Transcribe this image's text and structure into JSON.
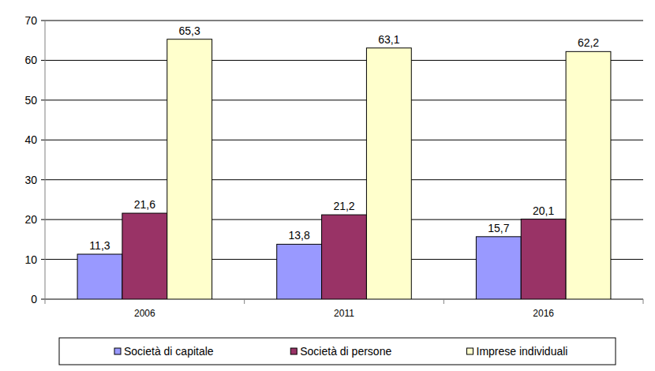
{
  "chart_data": {
    "type": "bar",
    "categories": [
      "2006",
      "2011",
      "2016"
    ],
    "series": [
      {
        "name": "Società di capitale",
        "color": "#9999ff",
        "values": [
          11.3,
          13.8,
          15.7
        ],
        "value_labels": [
          "11,3",
          "13,8",
          "15,7"
        ]
      },
      {
        "name": "Società di persone",
        "color": "#993366",
        "values": [
          21.6,
          21.2,
          20.1
        ],
        "value_labels": [
          "21,6",
          "21,2",
          "20,1"
        ]
      },
      {
        "name": "Imprese individuali",
        "color": "#ffffcc",
        "values": [
          65.3,
          63.1,
          62.2
        ],
        "value_labels": [
          "65,3",
          "63,1",
          "62,2"
        ]
      }
    ],
    "ylim": [
      0,
      70
    ],
    "yticks": [
      0,
      10,
      20,
      30,
      40,
      50,
      60,
      70
    ],
    "grid": true,
    "legend": "bottom",
    "data_labels": true
  }
}
